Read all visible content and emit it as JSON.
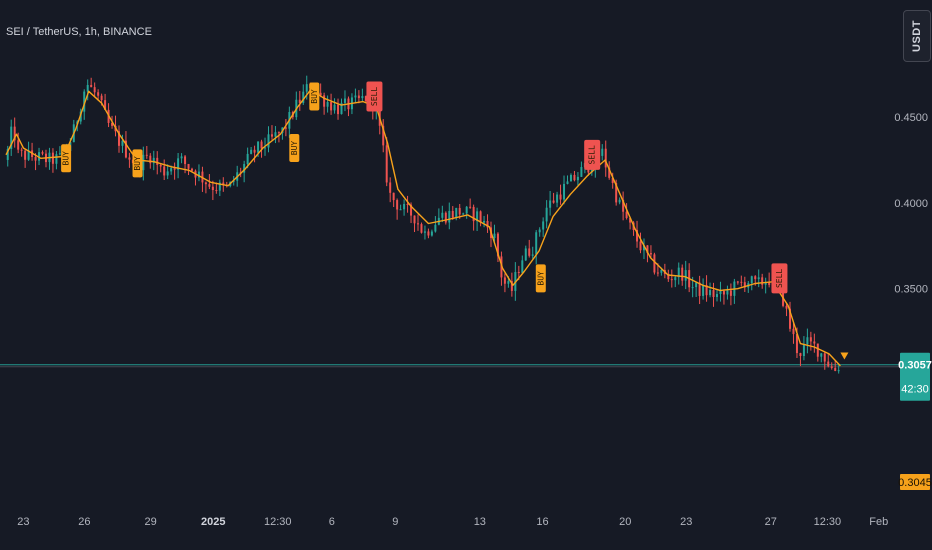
{
  "header": {
    "title": "SEI / TetherUS, 1h, BINANCE",
    "currency": "USDT"
  },
  "colors": {
    "background": "#161a25",
    "candle_up": "#26a69a",
    "candle_down": "#ef5350",
    "ma_line": "#f7a21b",
    "buy_label": "#f7a21b",
    "sell_label": "#ef5350",
    "last_price": "#26a69a",
    "ma_price": "#f7a21b"
  },
  "price_panel": {
    "last_price": "0.3057",
    "countdown": "42:30",
    "ma_price": "0.3045"
  },
  "chart_data": {
    "type": "candlestick",
    "symbol": "SEI / TetherUS",
    "interval": "1h",
    "exchange": "BINANCE",
    "y_axis": {
      "ticks": [
        "0.4500",
        "0.4000",
        "0.3500"
      ],
      "range": [
        0.256,
        0.492
      ]
    },
    "x_axis": {
      "ticks": [
        {
          "label": "23",
          "t": 0.02
        },
        {
          "label": "26",
          "t": 0.09
        },
        {
          "label": "29",
          "t": 0.166
        },
        {
          "label": "2025",
          "t": 0.238,
          "bold": true
        },
        {
          "label": "12:30",
          "t": 0.312
        },
        {
          "label": "6",
          "t": 0.374
        },
        {
          "label": "9",
          "t": 0.447
        },
        {
          "label": "13",
          "t": 0.544
        },
        {
          "label": "16",
          "t": 0.616
        },
        {
          "label": "20",
          "t": 0.711
        },
        {
          "label": "23",
          "t": 0.781
        },
        {
          "label": "27",
          "t": 0.878
        },
        {
          "label": "12:30",
          "t": 0.943
        },
        {
          "label": "Feb",
          "t": 1.002
        }
      ]
    },
    "price_path": [
      [
        0.0,
        0.425
      ],
      [
        0.008,
        0.445
      ],
      [
        0.014,
        0.428
      ],
      [
        0.03,
        0.427
      ],
      [
        0.05,
        0.425
      ],
      [
        0.066,
        0.426
      ],
      [
        0.078,
        0.442
      ],
      [
        0.092,
        0.47
      ],
      [
        0.105,
        0.462
      ],
      [
        0.118,
        0.445
      ],
      [
        0.135,
        0.432
      ],
      [
        0.15,
        0.422
      ],
      [
        0.165,
        0.428
      ],
      [
        0.18,
        0.418
      ],
      [
        0.2,
        0.425
      ],
      [
        0.218,
        0.418
      ],
      [
        0.235,
        0.41
      ],
      [
        0.255,
        0.408
      ],
      [
        0.268,
        0.418
      ],
      [
        0.285,
        0.43
      ],
      [
        0.3,
        0.435
      ],
      [
        0.318,
        0.442
      ],
      [
        0.335,
        0.458
      ],
      [
        0.35,
        0.47
      ],
      [
        0.36,
        0.462
      ],
      [
        0.38,
        0.455
      ],
      [
        0.4,
        0.458
      ],
      [
        0.415,
        0.462
      ],
      [
        0.423,
        0.458
      ],
      [
        0.43,
        0.44
      ],
      [
        0.44,
        0.405
      ],
      [
        0.455,
        0.396
      ],
      [
        0.468,
        0.393
      ],
      [
        0.48,
        0.382
      ],
      [
        0.498,
        0.392
      ],
      [
        0.52,
        0.395
      ],
      [
        0.54,
        0.393
      ],
      [
        0.56,
        0.382
      ],
      [
        0.57,
        0.355
      ],
      [
        0.58,
        0.348
      ],
      [
        0.592,
        0.368
      ],
      [
        0.606,
        0.375
      ],
      [
        0.62,
        0.397
      ],
      [
        0.64,
        0.408
      ],
      [
        0.66,
        0.418
      ],
      [
        0.675,
        0.425
      ],
      [
        0.684,
        0.43
      ],
      [
        0.69,
        0.42
      ],
      [
        0.705,
        0.398
      ],
      [
        0.72,
        0.382
      ],
      [
        0.732,
        0.372
      ],
      [
        0.745,
        0.362
      ],
      [
        0.76,
        0.356
      ],
      [
        0.775,
        0.36
      ],
      [
        0.79,
        0.35
      ],
      [
        0.805,
        0.348
      ],
      [
        0.82,
        0.345
      ],
      [
        0.835,
        0.35
      ],
      [
        0.85,
        0.355
      ],
      [
        0.862,
        0.352
      ],
      [
        0.875,
        0.356
      ],
      [
        0.888,
        0.352
      ],
      [
        0.9,
        0.328
      ],
      [
        0.91,
        0.312
      ],
      [
        0.92,
        0.318
      ],
      [
        0.93,
        0.316
      ],
      [
        0.94,
        0.31
      ],
      [
        0.95,
        0.302
      ],
      [
        0.958,
        0.306
      ]
    ],
    "ma_path": [
      [
        0.0,
        0.428
      ],
      [
        0.012,
        0.44
      ],
      [
        0.02,
        0.432
      ],
      [
        0.04,
        0.426
      ],
      [
        0.066,
        0.427
      ],
      [
        0.08,
        0.443
      ],
      [
        0.095,
        0.465
      ],
      [
        0.11,
        0.458
      ],
      [
        0.13,
        0.44
      ],
      [
        0.15,
        0.425
      ],
      [
        0.17,
        0.424
      ],
      [
        0.19,
        0.421
      ],
      [
        0.21,
        0.419
      ],
      [
        0.235,
        0.412
      ],
      [
        0.255,
        0.41
      ],
      [
        0.275,
        0.42
      ],
      [
        0.295,
        0.432
      ],
      [
        0.315,
        0.44
      ],
      [
        0.335,
        0.456
      ],
      [
        0.35,
        0.466
      ],
      [
        0.365,
        0.461
      ],
      [
        0.385,
        0.457
      ],
      [
        0.41,
        0.459
      ],
      [
        0.425,
        0.456
      ],
      [
        0.438,
        0.435
      ],
      [
        0.45,
        0.408
      ],
      [
        0.465,
        0.398
      ],
      [
        0.485,
        0.388
      ],
      [
        0.505,
        0.39
      ],
      [
        0.53,
        0.393
      ],
      [
        0.555,
        0.386
      ],
      [
        0.57,
        0.362
      ],
      [
        0.582,
        0.352
      ],
      [
        0.595,
        0.36
      ],
      [
        0.612,
        0.372
      ],
      [
        0.628,
        0.392
      ],
      [
        0.648,
        0.405
      ],
      [
        0.668,
        0.416
      ],
      [
        0.688,
        0.425
      ],
      [
        0.705,
        0.405
      ],
      [
        0.722,
        0.385
      ],
      [
        0.74,
        0.368
      ],
      [
        0.76,
        0.358
      ],
      [
        0.78,
        0.357
      ],
      [
        0.8,
        0.352
      ],
      [
        0.82,
        0.349
      ],
      [
        0.84,
        0.35
      ],
      [
        0.86,
        0.353
      ],
      [
        0.88,
        0.354
      ],
      [
        0.898,
        0.34
      ],
      [
        0.912,
        0.318
      ],
      [
        0.928,
        0.316
      ],
      [
        0.945,
        0.312
      ],
      [
        0.958,
        0.305
      ]
    ],
    "signals": [
      {
        "type": "buy",
        "t": 0.069,
        "price": 0.426,
        "text": "BUY"
      },
      {
        "type": "buy",
        "t": 0.151,
        "price": 0.423,
        "text": "BUY"
      },
      {
        "type": "buy",
        "t": 0.331,
        "price": 0.432,
        "text": "BUY"
      },
      {
        "type": "buy",
        "t": 0.354,
        "price": 0.462,
        "text": "BUY"
      },
      {
        "type": "sell",
        "t": 0.423,
        "price": 0.462,
        "text": "SELL"
      },
      {
        "type": "buy",
        "t": 0.614,
        "price": 0.356,
        "text": "BUY"
      },
      {
        "type": "sell",
        "t": 0.673,
        "price": 0.428,
        "text": "SELL"
      },
      {
        "type": "sell",
        "t": 0.888,
        "price": 0.356,
        "text": "SELL"
      }
    ],
    "horizontal_lines": [
      {
        "price": 0.3057,
        "color": "#26a69a"
      },
      {
        "price": 0.3045,
        "color": "#f7a21b"
      }
    ]
  }
}
